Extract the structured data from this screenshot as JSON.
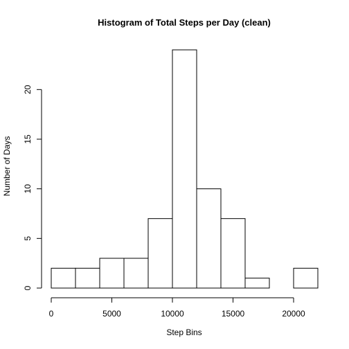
{
  "chart_data": {
    "type": "bar",
    "title": "Histogram of Total Steps per Day (clean)",
    "xlabel": "Step Bins",
    "ylabel": "Number of Days",
    "bins": [
      {
        "start": 0,
        "end": 2000,
        "count": 2
      },
      {
        "start": 2000,
        "end": 4000,
        "count": 2
      },
      {
        "start": 4000,
        "end": 6000,
        "count": 3
      },
      {
        "start": 6000,
        "end": 8000,
        "count": 3
      },
      {
        "start": 8000,
        "end": 10000,
        "count": 7
      },
      {
        "start": 10000,
        "end": 12000,
        "count": 24
      },
      {
        "start": 12000,
        "end": 14000,
        "count": 10
      },
      {
        "start": 14000,
        "end": 16000,
        "count": 7
      },
      {
        "start": 16000,
        "end": 18000,
        "count": 1
      },
      {
        "start": 18000,
        "end": 20000,
        "count": 0
      },
      {
        "start": 20000,
        "end": 22000,
        "count": 2
      }
    ],
    "xlim": [
      0,
      22000
    ],
    "ylim": [
      0,
      24
    ],
    "x_ticks": [
      0,
      5000,
      10000,
      15000,
      20000
    ],
    "y_ticks": [
      0,
      5,
      10,
      15,
      20
    ],
    "grid": false,
    "legend": "none",
    "bar_fill": "#ffffff",
    "bar_stroke": "#000000"
  }
}
